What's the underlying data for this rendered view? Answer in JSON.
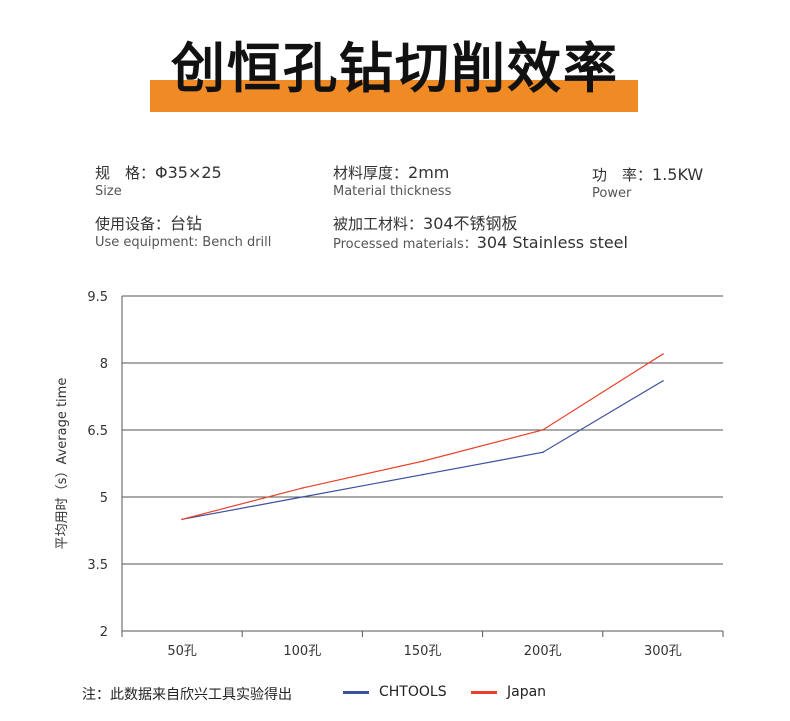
{
  "title": "创恒孔钻切削效率",
  "specs": [
    {
      "label_zh": "规　格：",
      "value": "Φ35×25",
      "label_en": "Size",
      "value_en": ""
    },
    {
      "label_zh": "材料厚度：",
      "value": "2mm",
      "label_en": "Material thickness",
      "value_en": ""
    },
    {
      "label_zh": "功　率：",
      "value": "1.5KW",
      "label_en": "Power",
      "value_en": ""
    },
    {
      "label_zh": "使用设备：",
      "value": "台钻",
      "label_en": "Use equipment: Bench drill",
      "value_en": ""
    },
    {
      "label_zh": "被加工材料：",
      "value": "304不锈钢板",
      "label_en": "Processed materials：",
      "value_en": "304 Stainless steel"
    }
  ],
  "footer": {
    "note": "注：此数据来自欣兴工具实验得出"
  },
  "colors": {
    "accent": "#f08a24",
    "chtools": "#3d4f9e",
    "japan": "#e8412a",
    "grid": "#555555"
  },
  "chart_data": {
    "type": "line",
    "title": "",
    "xlabel": "",
    "ylabel": "平均用时（s）Average time",
    "categories": [
      "50孔",
      "100孔",
      "150孔",
      "200孔",
      "300孔"
    ],
    "ylim": [
      2,
      9.5
    ],
    "yticks": [
      "9.5",
      "8",
      "6.5",
      "5",
      "3.5",
      "2"
    ],
    "grid": true,
    "series": [
      {
        "name": "CHTOOLS",
        "values": [
          4.5,
          5.0,
          5.5,
          6.0,
          7.6
        ]
      },
      {
        "name": "Japan",
        "values": [
          4.5,
          5.2,
          5.8,
          6.5,
          8.2
        ]
      }
    ],
    "legend": "bottom"
  }
}
